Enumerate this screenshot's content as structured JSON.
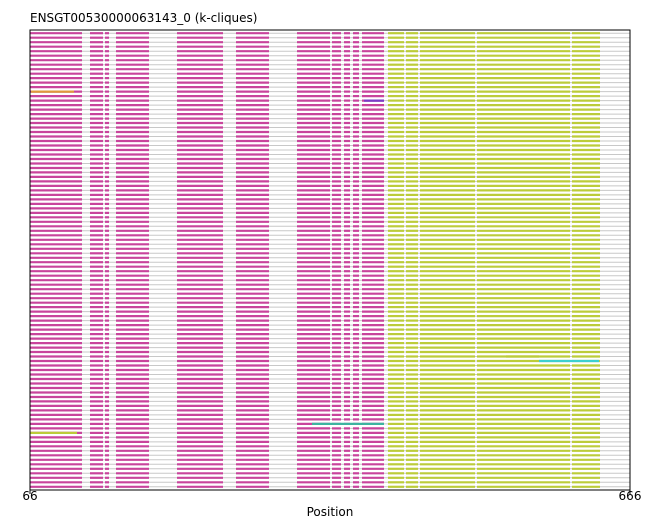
{
  "chart_data": {
    "type": "alignment-track",
    "title": "ENSGT00530000063143_0 (k-cliques)",
    "xlabel": "Position",
    "xlim": [
      66,
      666
    ],
    "x_ticks": [
      {
        "value": 66,
        "label": "66"
      },
      {
        "value": 666,
        "label": "666"
      }
    ],
    "track_count": 102,
    "colors": {
      "frame": "#000000",
      "background": "#ffffff",
      "gap_line": "#c8c8c8",
      "primary_segment": "#c8449c",
      "secondary_segment": "#bccc3a",
      "accent_orange": "#e09a3c",
      "accent_purple": "#7a3cc8",
      "accent_teal": "#3cb4a0",
      "accent_cyan": "#3cd0d0"
    },
    "column_pattern": [
      {
        "start": 66,
        "end": 118,
        "color": "primary_segment"
      },
      {
        "start": 126,
        "end": 139,
        "color": "primary_segment"
      },
      {
        "start": 141,
        "end": 145,
        "color": "primary_segment"
      },
      {
        "start": 152,
        "end": 185,
        "color": "primary_segment"
      },
      {
        "start": 213,
        "end": 259,
        "color": "primary_segment"
      },
      {
        "start": 272,
        "end": 305,
        "color": "primary_segment"
      },
      {
        "start": 333,
        "end": 366,
        "color": "primary_segment"
      },
      {
        "start": 368,
        "end": 377,
        "color": "primary_segment"
      },
      {
        "start": 380,
        "end": 386,
        "color": "primary_segment"
      },
      {
        "start": 389,
        "end": 395,
        "color": "primary_segment"
      },
      {
        "start": 398,
        "end": 420,
        "color": "primary_segment"
      },
      {
        "start": 424,
        "end": 440,
        "color": "secondary_segment"
      },
      {
        "start": 442,
        "end": 454,
        "color": "secondary_segment"
      },
      {
        "start": 456,
        "end": 511,
        "color": "secondary_segment"
      },
      {
        "start": 513,
        "end": 606,
        "color": "secondary_segment"
      },
      {
        "start": 608,
        "end": 636,
        "color": "secondary_segment"
      }
    ],
    "highlights": [
      {
        "track": 13,
        "start": 67,
        "end": 110,
        "color": "accent_orange"
      },
      {
        "track": 15,
        "start": 400,
        "end": 420,
        "color": "accent_purple"
      },
      {
        "track": 72,
        "start": 542,
        "end": 575,
        "color": "secondary_segment"
      },
      {
        "track": 73,
        "start": 575,
        "end": 635,
        "color": "accent_cyan"
      },
      {
        "track": 87,
        "start": 348,
        "end": 420,
        "color": "accent_teal"
      },
      {
        "track": 89,
        "start": 66,
        "end": 113,
        "color": "secondary_segment"
      }
    ]
  }
}
